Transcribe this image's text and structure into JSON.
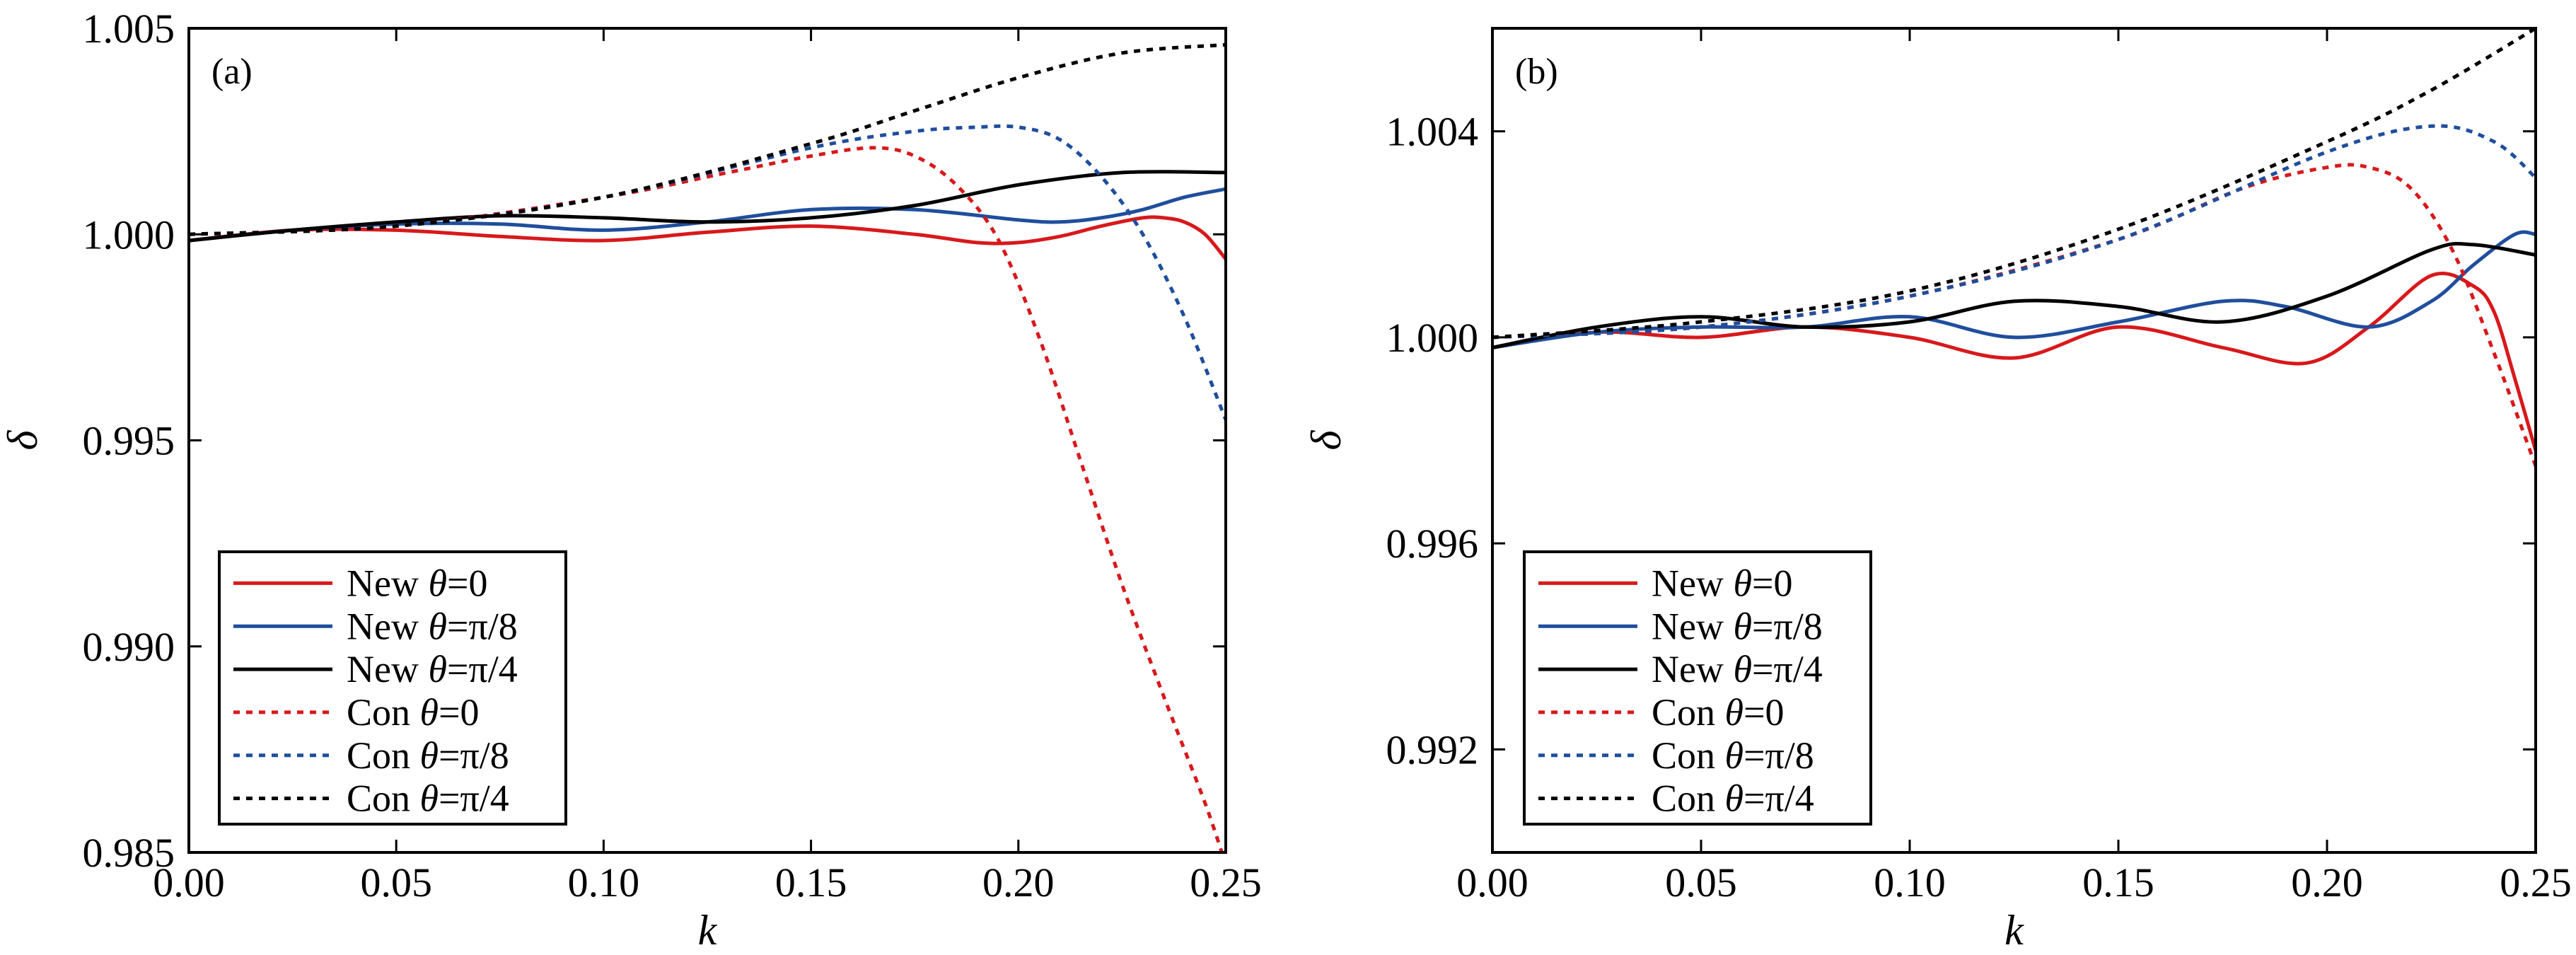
{
  "chart_data": [
    {
      "type": "line",
      "panel_label": "(a)",
      "xlabel": "k",
      "ylabel": "δ",
      "xlim": [
        0.0,
        0.25
      ],
      "ylim": [
        0.985,
        1.005
      ],
      "xticks": [
        "0.00",
        "0.05",
        "0.10",
        "0.15",
        "0.20",
        "0.25"
      ],
      "xtick_values": [
        0.0,
        0.05,
        0.1,
        0.15,
        0.2,
        0.25
      ],
      "yticks": [
        "0.985",
        "0.990",
        "0.995",
        "1.000",
        "1.005"
      ],
      "ytick_values": [
        0.985,
        0.99,
        0.995,
        1.0,
        1.005
      ],
      "legend_location": "lower-left",
      "series": [
        {
          "name": "New θ=0",
          "prefix": "New ",
          "var": "θ",
          "suffix": "=0",
          "color": "#d7191c",
          "dash": "solid",
          "x": [
            0.0,
            0.025,
            0.05,
            0.075,
            0.1,
            0.125,
            0.15,
            0.175,
            0.19,
            0.2,
            0.21,
            0.22,
            0.23,
            0.235,
            0.24,
            0.245,
            0.25
          ],
          "y": [
            0.99985,
            1.0001,
            1.0001,
            0.99995,
            0.99985,
            1.00005,
            1.0002,
            1.0,
            0.9998,
            0.9998,
            0.99995,
            1.0002,
            1.0004,
            1.0004,
            1.0003,
            1.0,
            0.9994
          ]
        },
        {
          "name": "New θ=π/8",
          "prefix": "New ",
          "var": "θ",
          "suffix": "=π/8",
          "color": "#1f4e9c",
          "dash": "solid",
          "x": [
            0.0,
            0.025,
            0.05,
            0.075,
            0.1,
            0.125,
            0.15,
            0.175,
            0.2,
            0.21,
            0.22,
            0.23,
            0.24,
            0.25
          ],
          "y": [
            0.99985,
            1.0001,
            1.00025,
            1.00025,
            1.0001,
            1.0003,
            1.0006,
            1.0006,
            1.00035,
            1.0003,
            1.0004,
            1.0006,
            1.0009,
            1.0011
          ]
        },
        {
          "name": "New θ=π/4",
          "prefix": "New ",
          "var": "θ",
          "suffix": "=π/4",
          "color": "#000000",
          "dash": "solid",
          "x": [
            0.0,
            0.025,
            0.05,
            0.075,
            0.1,
            0.125,
            0.15,
            0.175,
            0.2,
            0.225,
            0.25
          ],
          "y": [
            0.99985,
            1.0001,
            1.0003,
            1.00045,
            1.0004,
            1.0003,
            1.0004,
            1.0007,
            1.0012,
            1.0015,
            1.0015
          ]
        },
        {
          "name": "Con θ=0",
          "prefix": "Con ",
          "var": "θ",
          "suffix": "=0",
          "color": "#d7191c",
          "dash": "dotted",
          "x": [
            0.0,
            0.05,
            0.1,
            0.13,
            0.15,
            0.165,
            0.175,
            0.185,
            0.195,
            0.205,
            0.215,
            0.225,
            0.235,
            0.245,
            0.25
          ],
          "y": [
            1.0,
            1.0002,
            1.0009,
            1.0015,
            1.0019,
            1.0021,
            1.0019,
            1.0012,
            0.9999,
            0.9975,
            0.9945,
            0.9915,
            0.9888,
            0.9862,
            0.9847
          ]
        },
        {
          "name": "Con θ=π/8",
          "prefix": "Con ",
          "var": "θ",
          "suffix": "=π/8",
          "color": "#1f4e9c",
          "dash": "dotted",
          "x": [
            0.0,
            0.05,
            0.1,
            0.15,
            0.175,
            0.19,
            0.2,
            0.21,
            0.22,
            0.23,
            0.24,
            0.25
          ],
          "y": [
            1.0,
            1.0002,
            1.0009,
            1.0021,
            1.0025,
            1.0026,
            1.0026,
            1.0023,
            1.0014,
            1.0,
            0.998,
            0.9955
          ]
        },
        {
          "name": "Con θ=π/4",
          "prefix": "Con ",
          "var": "θ",
          "suffix": "=π/4",
          "color": "#000000",
          "dash": "dotted",
          "x": [
            0.0,
            0.05,
            0.1,
            0.15,
            0.175,
            0.2,
            0.225,
            0.25
          ],
          "y": [
            1.0,
            1.0002,
            1.0009,
            1.0022,
            1.003,
            1.0038,
            1.0044,
            1.0046
          ]
        }
      ]
    },
    {
      "type": "line",
      "panel_label": "(b)",
      "xlabel": "k",
      "ylabel": "δ",
      "xlim": [
        0.0,
        0.25
      ],
      "ylim": [
        0.99,
        1.006
      ],
      "xticks": [
        "0.00",
        "0.05",
        "0.10",
        "0.15",
        "0.20",
        "0.25"
      ],
      "xtick_values": [
        0.0,
        0.05,
        0.1,
        0.15,
        0.2,
        0.25
      ],
      "yticks": [
        "0.992",
        "0.996",
        "1.000",
        "1.004"
      ],
      "ytick_values": [
        0.992,
        0.996,
        1.0,
        1.004
      ],
      "legend_location": "lower-left",
      "series": [
        {
          "name": "New θ=0",
          "prefix": "New ",
          "var": "θ",
          "suffix": "=0",
          "color": "#d7191c",
          "dash": "solid",
          "x": [
            0.0,
            0.025,
            0.05,
            0.075,
            0.1,
            0.125,
            0.15,
            0.175,
            0.195,
            0.21,
            0.225,
            0.235,
            0.24,
            0.245,
            0.25
          ],
          "y": [
            0.9998,
            1.0001,
            1.0,
            1.0002,
            1.0,
            0.9996,
            1.0002,
            0.9998,
            0.9995,
            1.0002,
            1.0012,
            1.001,
            1.0005,
            0.9992,
            0.9978
          ]
        },
        {
          "name": "New θ=π/8",
          "prefix": "New ",
          "var": "θ",
          "suffix": "=π/8",
          "color": "#1f4e9c",
          "dash": "solid",
          "x": [
            0.0,
            0.025,
            0.05,
            0.075,
            0.1,
            0.125,
            0.15,
            0.175,
            0.19,
            0.21,
            0.225,
            0.235,
            0.245,
            0.25
          ],
          "y": [
            0.9998,
            1.0001,
            1.0002,
            1.0002,
            1.0004,
            1.0,
            1.0003,
            1.0007,
            1.0006,
            1.0002,
            1.0007,
            1.0014,
            1.002,
            1.002
          ]
        },
        {
          "name": "New θ=π/4",
          "prefix": "New ",
          "var": "θ",
          "suffix": "=π/4",
          "color": "#000000",
          "dash": "solid",
          "x": [
            0.0,
            0.025,
            0.05,
            0.075,
            0.1,
            0.125,
            0.15,
            0.175,
            0.2,
            0.225,
            0.235,
            0.25
          ],
          "y": [
            0.9998,
            1.0002,
            1.0004,
            1.0002,
            1.0003,
            1.0007,
            1.0006,
            1.0003,
            1.0008,
            1.0017,
            1.0018,
            1.0016
          ]
        },
        {
          "name": "Con θ=0",
          "prefix": "Con ",
          "var": "θ",
          "suffix": "=0",
          "color": "#d7191c",
          "dash": "dotted",
          "x": [
            0.0,
            0.05,
            0.1,
            0.15,
            0.18,
            0.2,
            0.21,
            0.22,
            0.23,
            0.24,
            0.25
          ],
          "y": [
            1.0,
            1.0002,
            1.0008,
            1.0019,
            1.0029,
            1.0033,
            1.0033,
            1.0029,
            1.0017,
            0.9997,
            0.9975
          ]
        },
        {
          "name": "Con θ=π/8",
          "prefix": "Con ",
          "var": "θ",
          "suffix": "=π/8",
          "color": "#1f4e9c",
          "dash": "dotted",
          "x": [
            0.0,
            0.05,
            0.1,
            0.15,
            0.2,
            0.225,
            0.24,
            0.25
          ],
          "y": [
            1.0,
            1.0002,
            1.0008,
            1.0019,
            1.0036,
            1.0041,
            1.0038,
            1.0031
          ]
        },
        {
          "name": "Con θ=π/4",
          "prefix": "Con ",
          "var": "θ",
          "suffix": "=π/4",
          "color": "#000000",
          "dash": "dotted",
          "x": [
            0.0,
            0.05,
            0.1,
            0.15,
            0.2,
            0.225,
            0.25
          ],
          "y": [
            1.0,
            1.0003,
            1.0009,
            1.0021,
            1.0038,
            1.0048,
            1.006
          ]
        }
      ]
    }
  ]
}
